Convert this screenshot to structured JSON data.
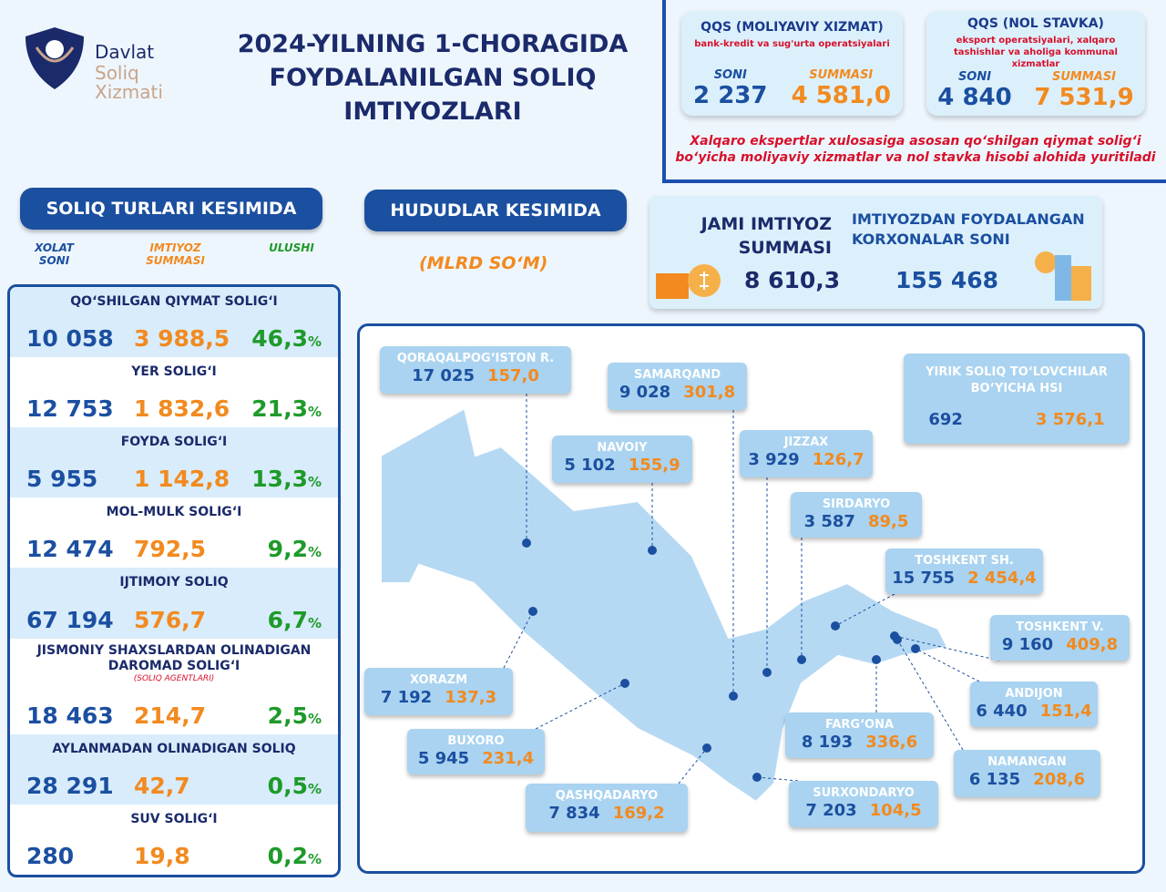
{
  "logo": {
    "line1": "Davlat",
    "line2": "Soliq",
    "line3": "Xizmati"
  },
  "title": "2024-YILNING 1-CHORAGIDA FOYDALANILGAN SOLIQ IMTIYOZLARI",
  "qqs": [
    {
      "title": "QQS (MOLIYAVIY XIZMAT)",
      "subtitle": "bank-kredit va sug'urta operatsiyalari",
      "count_label": "SONI",
      "sum_label": "SUMMASI",
      "count": "2 237",
      "sum": "4 581,0"
    },
    {
      "title": "QQS (NOL STAVKA)",
      "subtitle": "eksport operatsiyalari, xalqaro tashishlar va aholiga kommunal xizmatlar",
      "count_label": "SONI",
      "sum_label": "SUMMASI",
      "count": "4 840",
      "sum": "7 531,9"
    }
  ],
  "note": "Xalqaro ekspertlar xulosasiga asosan qo‘shilgan qiymat solig‘i bo‘yicha moliyaviy xizmatlar va nol stavka hisobi alohida yuritiladi",
  "section_tax": "SOLIQ TURLARI KESIMIDA",
  "section_region": "HUDUDLAR KESIMIDA",
  "unit": "(MLRD SO‘M)",
  "columns": {
    "count": "XOLAT SONI",
    "sum": "IMTIYOZ SUMMASI",
    "share": "ULUSHI"
  },
  "taxes": [
    {
      "name": "QO‘SHILGAN QIYMAT SOLIG‘I",
      "count": "10 058",
      "sum": "3 988,5",
      "share": "46,3"
    },
    {
      "name": "YER SOLIG‘I",
      "count": "12 753",
      "sum": "1 832,6",
      "share": "21,3"
    },
    {
      "name": "FOYDA SOLIG‘I",
      "count": "5 955",
      "sum": "1 142,8",
      "share": "13,3"
    },
    {
      "name": "MOL-MULK SOLIG‘I",
      "count": "12 474",
      "sum": "792,5",
      "share": "9,2"
    },
    {
      "name": "IJTIMOIY SOLIQ",
      "count": "67 194",
      "sum": "576,7",
      "share": "6,7"
    },
    {
      "name": "JISMONIY SHAXSLARDAN OLINADIGAN DAROMAD SOLIG‘I",
      "note": "(SOLIQ AGENTLARI)",
      "count": "18 463",
      "sum": "214,7",
      "share": "2,5"
    },
    {
      "name": "AYLANMADAN OLINADIGAN SOLIQ",
      "count": "28 291",
      "sum": "42,7",
      "share": "0,5"
    },
    {
      "name": "SUV SOLIG‘I",
      "count": "280",
      "sum": "19,8",
      "share": "0,2"
    }
  ],
  "percent_sign": "%",
  "totals": {
    "sum_label": "JAMI IMTIYOZ SUMMASI",
    "sum": "8 610,3",
    "count_label": "IMTIYOZDAN FOYDALANGAN KORXONALAR SONI",
    "count": "155 468"
  },
  "regions": [
    {
      "name": "QORAQALPOG‘ISTON R.",
      "count": "17 025",
      "sum": "157,0"
    },
    {
      "name": "SAMARQAND",
      "count": "9 028",
      "sum": "301,8"
    },
    {
      "name": "YIRIK SOLIQ TO‘LOVCHILAR BO‘YICHA HSI",
      "count": "692",
      "sum": "3 576,1"
    },
    {
      "name": "NAVOIY",
      "count": "5 102",
      "sum": "155,9"
    },
    {
      "name": "JIZZAX",
      "count": "3 929",
      "sum": "126,7"
    },
    {
      "name": "SIRDARYO",
      "count": "3 587",
      "sum": "89,5"
    },
    {
      "name": "TOSHKENT SH.",
      "count": "15 755",
      "sum": "2 454,4"
    },
    {
      "name": "TOSHKENT V.",
      "count": "9 160",
      "sum": "409,8"
    },
    {
      "name": "ANDIJON",
      "count": "6 440",
      "sum": "151,4"
    },
    {
      "name": "FARG‘ONA",
      "count": "8 193",
      "sum": "336,6"
    },
    {
      "name": "NAMANGAN",
      "count": "6 135",
      "sum": "208,6"
    },
    {
      "name": "SURXONDARYO",
      "count": "7 203",
      "sum": "104,5"
    },
    {
      "name": "QASHQADARYO",
      "count": "7 834",
      "sum": "169,2"
    },
    {
      "name": "BUXORO",
      "count": "5 945",
      "sum": "231,4"
    },
    {
      "name": "XORAZM",
      "count": "7 192",
      "sum": "137,3"
    }
  ]
}
